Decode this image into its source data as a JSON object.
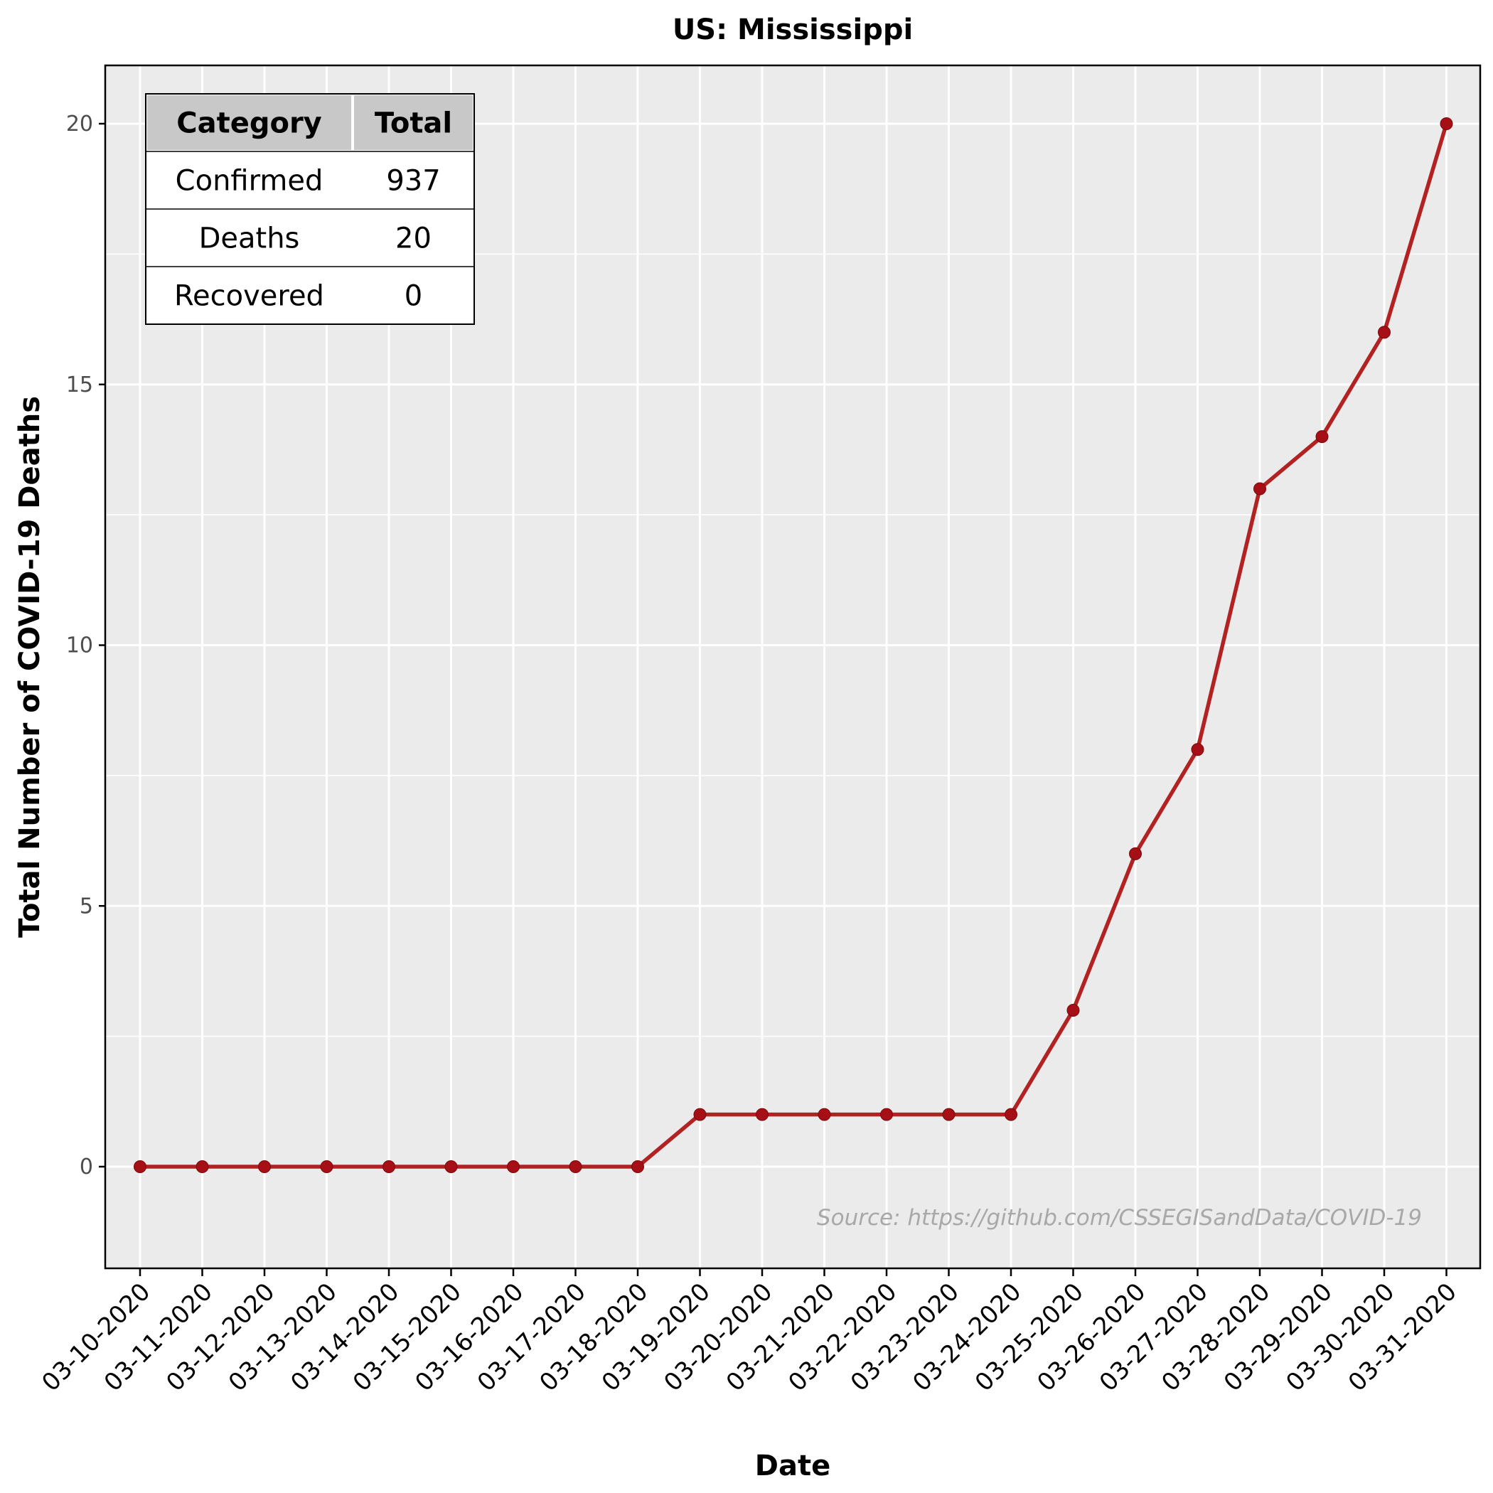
{
  "chart_data": {
    "type": "line",
    "title": "US: Mississippi",
    "xlabel": "Date",
    "ylabel": "Total Number of COVID-19 Deaths",
    "categories": [
      "03-10-2020",
      "03-11-2020",
      "03-12-2020",
      "03-13-2020",
      "03-14-2020",
      "03-15-2020",
      "03-16-2020",
      "03-17-2020",
      "03-18-2020",
      "03-19-2020",
      "03-20-2020",
      "03-21-2020",
      "03-22-2020",
      "03-23-2020",
      "03-24-2020",
      "03-25-2020",
      "03-26-2020",
      "03-27-2020",
      "03-28-2020",
      "03-29-2020",
      "03-30-2020",
      "03-31-2020"
    ],
    "values": [
      0,
      0,
      0,
      0,
      0,
      0,
      0,
      0,
      0,
      1,
      1,
      1,
      1,
      1,
      1,
      3,
      6,
      8,
      13,
      14,
      16,
      20
    ],
    "yticks": [
      0,
      5,
      10,
      15,
      20
    ],
    "ylim": [
      -2,
      21
    ],
    "grid": true,
    "colors": {
      "line": "#b22222",
      "point": "#a50f15",
      "panel": "#ebebeb",
      "grid": "#ffffff",
      "table_header": "#c8c8c8"
    },
    "annotation": "Source: https://github.com/CSSEGISandData/COVID-19",
    "table": {
      "headers": [
        "Category",
        "Total"
      ],
      "rows": [
        [
          "Confirmed",
          "937"
        ],
        [
          "Deaths",
          "20"
        ],
        [
          "Recovered",
          "0"
        ]
      ],
      "placement": "top-left"
    }
  }
}
